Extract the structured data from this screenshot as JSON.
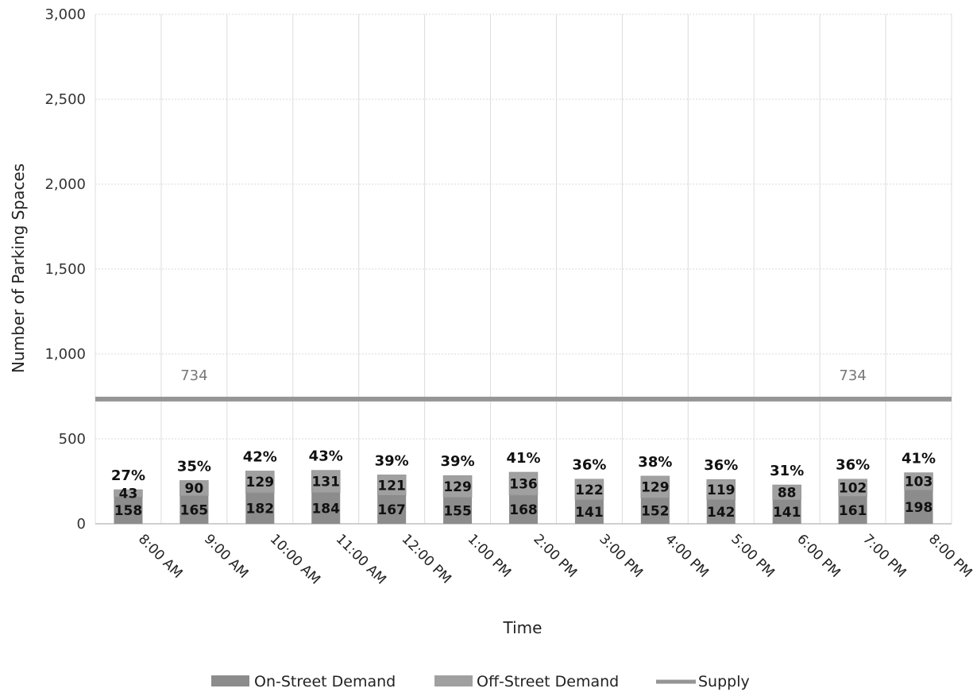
{
  "chart_data": {
    "type": "bar",
    "stacked": true,
    "categories": [
      "8:00 AM",
      "9:00 AM",
      "10:00 AM",
      "11:00 AM",
      "12:00 PM",
      "1:00 PM",
      "2:00 PM",
      "3:00 PM",
      "4:00 PM",
      "5:00 PM",
      "6:00 PM",
      "7:00 PM",
      "8:00 PM"
    ],
    "series": [
      {
        "name": "On-Street Demand",
        "values": [
          158,
          165,
          182,
          184,
          167,
          155,
          168,
          141,
          152,
          142,
          141,
          161,
          198
        ],
        "color": "#8c8c8c"
      },
      {
        "name": "Off-Street Demand",
        "values": [
          43,
          90,
          129,
          131,
          121,
          129,
          136,
          122,
          129,
          119,
          88,
          102,
          103
        ],
        "color": "#a0a0a0"
      },
      {
        "name": "Supply",
        "type": "line",
        "values": [
          734,
          734,
          734,
          734,
          734,
          734,
          734,
          734,
          734,
          734,
          734,
          734,
          734
        ],
        "color": "#959595"
      }
    ],
    "occupancy_labels": [
      "27%",
      "35%",
      "42%",
      "43%",
      "39%",
      "39%",
      "41%",
      "36%",
      "38%",
      "36%",
      "31%",
      "36%",
      "41%"
    ],
    "supply_labels": [
      {
        "category": "9:00 AM",
        "text": "734"
      },
      {
        "category": "7:00 PM",
        "text": "734"
      }
    ],
    "title": "",
    "xlabel": "Time",
    "ylabel": "Number of Parking Spaces",
    "ylim": [
      0,
      3000
    ],
    "yticks": [
      0,
      500,
      1000,
      1500,
      2000,
      2500,
      3000
    ],
    "ytick_labels": [
      "0",
      "500",
      "1,000",
      "1,500",
      "2,000",
      "2,500",
      "3,000"
    ],
    "grid": true,
    "legend": {
      "position": "bottom",
      "entries": [
        "On-Street Demand",
        "Off-Street Demand",
        "Supply"
      ]
    }
  }
}
